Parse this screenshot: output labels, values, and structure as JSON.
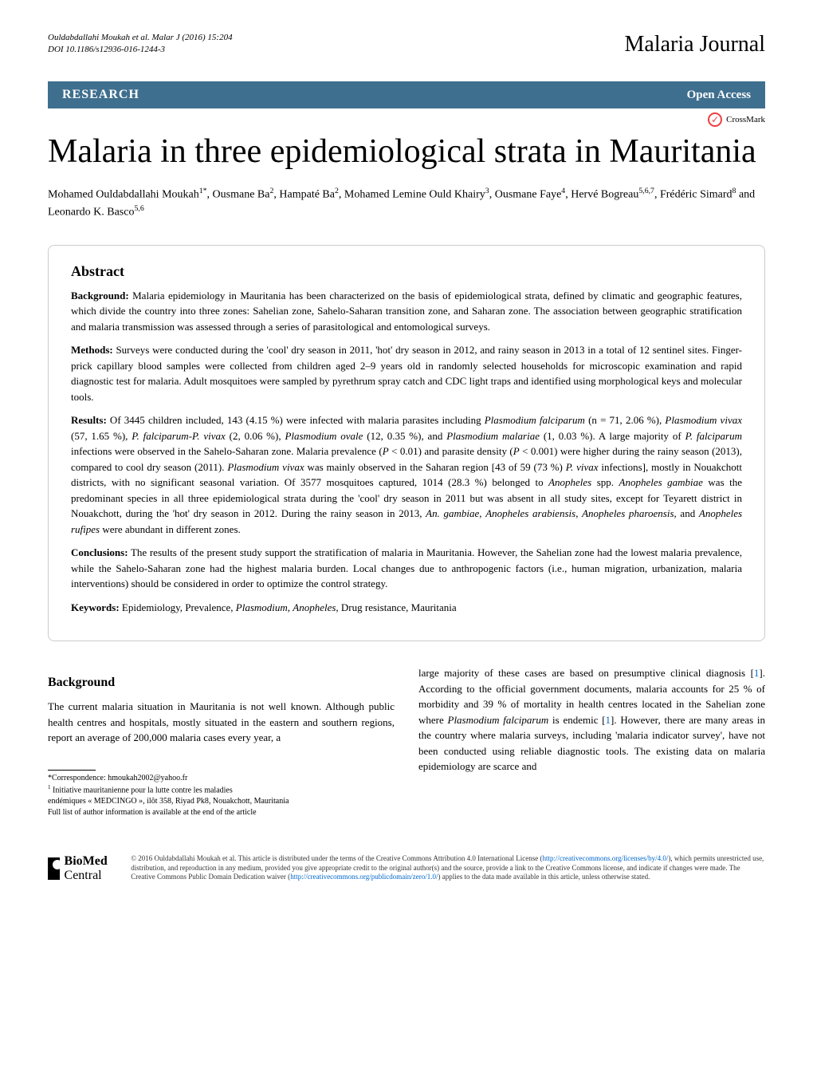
{
  "header": {
    "citation_line1": "Ouldabdallahi Moukah et al. Malar J (2016) 15:204",
    "citation_line2": "DOI 10.1186/s12936-016-1244-3",
    "journal": "Malaria Journal"
  },
  "research_bar": {
    "label": "RESEARCH",
    "open_access": "Open Access"
  },
  "crossmark": "CrossMark",
  "title": "Malaria in three epidemiological strata in Mauritania",
  "authors": "Mohamed Ouldabdallahi Moukah1*, Ousmane Ba2, Hampaté Ba2, Mohamed Lemine Ould Khairy3, Ousmane Faye4, Hervé Bogreau5,6,7, Frédéric Simard8 and Leonardo K. Basco5,6",
  "abstract": {
    "heading": "Abstract",
    "background_label": "Background:",
    "background": " Malaria epidemiology in Mauritania has been characterized on the basis of epidemiological strata, defined by climatic and geographic features, which divide the country into three zones: Sahelian zone, Sahelo-Saharan transition zone, and Saharan zone. The association between geographic stratification and malaria transmission was assessed through a series of parasitological and entomological surveys.",
    "methods_label": "Methods:",
    "methods": " Surveys were conducted during the 'cool' dry season in 2011, 'hot' dry season in 2012, and rainy season in 2013 in a total of 12 sentinel sites. Finger-prick capillary blood samples were collected from children aged 2–9 years old in randomly selected households for microscopic examination and rapid diagnostic test for malaria. Adult mosquitoes were sampled by pyrethrum spray catch and CDC light traps and identified using morphological keys and molecular tools.",
    "results_label": "Results:",
    "results": " Of 3445 children included, 143 (4.15 %) were infected with malaria parasites including Plasmodium falciparum (n = 71, 2.06 %), Plasmodium vivax (57, 1.65 %), P. falciparum-P. vivax (2, 0.06 %), Plasmodium ovale (12, 0.35 %), and Plasmodium malariae (1, 0.03 %). A large majority of P. falciparum infections were observed in the Sahelo-Saharan zone. Malaria prevalence (P < 0.01) and parasite density (P < 0.001) were higher during the rainy season (2013), compared to cool dry season (2011). Plasmodium vivax was mainly observed in the Saharan region [43 of 59 (73 %) P. vivax infections], mostly in Nouakchott districts, with no significant seasonal variation. Of 3577 mosquitoes captured, 1014 (28.3 %) belonged to Anopheles spp. Anopheles gambiae was the predominant species in all three epidemiological strata during the 'cool' dry season in 2011 but was absent in all study sites, except for Teyarett district in Nouakchott, during the 'hot' dry season in 2012. During the rainy season in 2013, An. gambiae, Anopheles arabiensis, Anopheles pharoensis, and Anopheles rufipes were abundant in different zones.",
    "conclusions_label": "Conclusions:",
    "conclusions": " The results of the present study support the stratification of malaria in Mauritania. However, the Sahelian zone had the lowest malaria prevalence, while the Sahelo-Saharan zone had the highest malaria burden. Local changes due to anthropogenic factors (i.e., human migration, urbanization, malaria interventions) should be considered in order to optimize the control strategy.",
    "keywords_label": "Keywords:",
    "keywords": " Epidemiology, Prevalence, Plasmodium, Anopheles, Drug resistance, Mauritania"
  },
  "background_section": {
    "heading": "Background",
    "col1": "The current malaria situation in Mauritania is not well known. Although public health centres and hospitals, mostly situated in the eastern and southern regions, report an average of 200,000 malaria cases every year, a",
    "col2": "large majority of these cases are based on presumptive clinical diagnosis [1]. According to the official government documents, malaria accounts for 25 % of morbidity and 39 % of mortality in health centres located in the Sahelian zone where Plasmodium falciparum is endemic [1]. However, there are many areas in the country where malaria surveys, including 'malaria indicator survey', have not been conducted using reliable diagnostic tools. The existing data on malaria epidemiology are scarce and"
  },
  "correspondence": {
    "line1": "*Correspondence: hmoukah2002@yahoo.fr",
    "line2": "1 Initiative mauritanienne pour la lutte contre les maladies",
    "line3": "endémiques « MEDCINGO », ilôt 358, Riyad Pk8, Nouakchott, Mauritania",
    "line4": "Full list of author information is available at the end of the article"
  },
  "footer": {
    "biomed": "BioMed",
    "central": "Central",
    "license": "© 2016 Ouldabdallahi Moukah et al. This article is distributed under the terms of the Creative Commons Attribution 4.0 International License (http://creativecommons.org/licenses/by/4.0/), which permits unrestricted use, distribution, and reproduction in any medium, provided you give appropriate credit to the original author(s) and the source, provide a link to the Creative Commons license, and indicate if changes were made. The Creative Commons Public Domain Dedication waiver (http://creativecommons.org/publicdomain/zero/1.0/) applies to the data made available in this article, unless otherwise stated."
  }
}
